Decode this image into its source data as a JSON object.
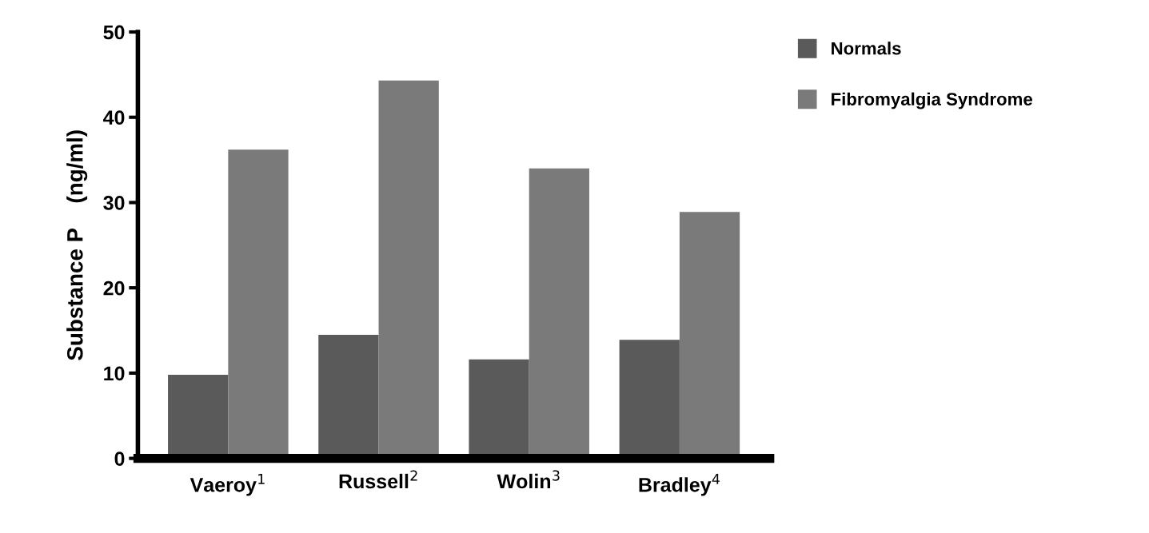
{
  "chart_data": {
    "type": "bar",
    "ylabel": "Substance P    (ng/ml)",
    "categories": [
      "Vaeroy$^{1}$",
      "Russell$^{2}$",
      "Wolin$^{3}$",
      "Bradley$^{4}$"
    ],
    "series": [
      {
        "name": "Normals",
        "color": "#5a5a5a",
        "values": [
          9.8,
          14.5,
          11.6,
          13.9
        ]
      },
      {
        "name": "Fibromyalgia Syndrome",
        "color": "#7a7a7a",
        "values": [
          36.2,
          44.3,
          34.0,
          28.9
        ]
      }
    ],
    "ylim": [
      0,
      50
    ],
    "yticks": [
      0,
      10,
      20,
      30,
      40,
      50
    ],
    "grid": false,
    "legend": "top right"
  }
}
